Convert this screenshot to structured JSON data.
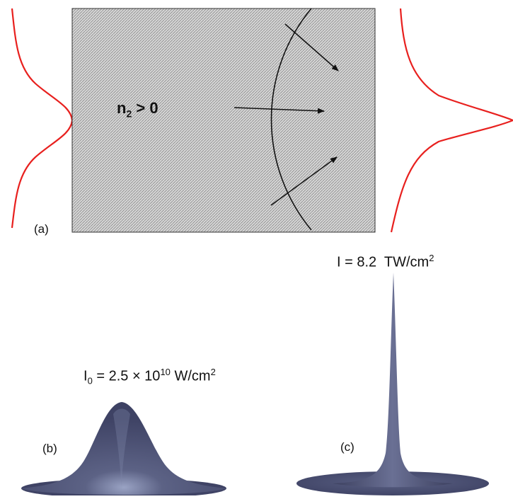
{
  "panel_a": {
    "label": "(a)",
    "medium_label_main": "n",
    "medium_label_sub": "2",
    "medium_label_rest": " > 0"
  },
  "panel_b": {
    "label": "(b)",
    "intensity_prefix": "I",
    "intensity_sub": "0",
    "intensity_mid": " = 2.5 × 10",
    "intensity_exp": "10",
    "intensity_unit": " W/cm",
    "intensity_unit_exp": "2"
  },
  "panel_c": {
    "label": "(c)",
    "intensity_main": "I = 8.2  TW/cm",
    "intensity_unit_exp": "2"
  },
  "colors": {
    "profile_curve": "#e8201e",
    "medium_fill": "#c9c9c9",
    "surface": "#4d5175",
    "wavefront": "#111111"
  }
}
